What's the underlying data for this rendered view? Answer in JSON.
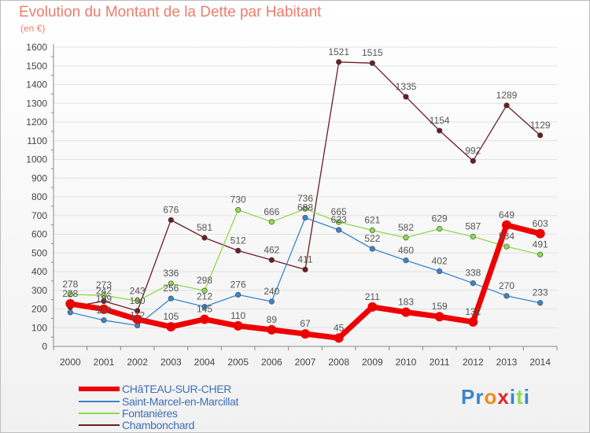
{
  "page": {
    "title": "Evolution du Montant de la Dette par Habitant",
    "subtitle": "(en €)",
    "logo": "Proxiti"
  },
  "chart_data": {
    "type": "line",
    "title": "Evolution du Montant de la Dette par Habitant",
    "subtitle": "(en €)",
    "xlabel": "",
    "ylabel": "",
    "x": [
      2000,
      2001,
      2002,
      2003,
      2004,
      2005,
      2006,
      2007,
      2008,
      2009,
      2010,
      2011,
      2012,
      2013,
      2014
    ],
    "ylim": [
      0,
      1600
    ],
    "yticks": [
      0,
      100,
      200,
      300,
      400,
      500,
      600,
      700,
      800,
      900,
      1000,
      1100,
      1200,
      1300,
      1400,
      1500,
      1600
    ],
    "grid": "horizontal",
    "legend": "bottom-left",
    "series": [
      {
        "name": "Chambonchard",
        "color": "#6b1d24",
        "values": [
          210,
          242,
          190,
          676,
          581,
          512,
          462,
          411,
          1521,
          1515,
          1335,
          1154,
          992,
          1289,
          1129
        ]
      },
      {
        "name": "Fontanières",
        "color": "#8fd94f",
        "values": [
          278,
          273,
          243,
          336,
          298,
          730,
          666,
          736,
          665,
          621,
          582,
          629,
          587,
          534,
          491
        ]
      },
      {
        "name": "Saint-Marcel-en-Marcillat",
        "color": "#3a86c8",
        "values": [
          182,
          140,
          112,
          256,
          212,
          276,
          240,
          688,
          623,
          522,
          460,
          402,
          338,
          270,
          233
        ]
      },
      {
        "name": "CHâTEAU-SUR-CHER",
        "color": "#ee0000",
        "values": [
          228,
          199,
          145,
          105,
          145,
          110,
          89,
          67,
          45,
          211,
          183,
          159,
          131,
          649,
          603
        ]
      }
    ],
    "data_labels": {
      "Chambonchard": [
        "",
        "242",
        "190",
        "676",
        "581",
        "512",
        "462",
        "411",
        "1521",
        "1515",
        "1335",
        "1154",
        "992",
        "1289",
        "1129"
      ],
      "Fontanières": [
        "278",
        "273",
        "243",
        "336",
        "298",
        "730",
        "666",
        "736",
        "665",
        "621",
        "582",
        "629",
        "587",
        "534",
        "491"
      ],
      "Saint-Marcel-en-Marcillat": [
        "",
        "140",
        "112",
        "256",
        "212",
        "276",
        "240",
        "688",
        "623",
        "522",
        "460",
        "402",
        "338",
        "270",
        "233"
      ],
      "CHâTEAU-SUR-CHER": [
        "228",
        "199",
        "",
        "105",
        "145",
        "110",
        "89",
        "67",
        "45",
        "211",
        "183",
        "159",
        "131",
        "649",
        "603"
      ]
    }
  },
  "legend": [
    {
      "label": "CHâTEAU-SUR-CHER",
      "color": "#ee0000"
    },
    {
      "label": "Saint-Marcel-en-Marcillat",
      "color": "#3a86c8"
    },
    {
      "label": "Fontanières",
      "color": "#8fd94f"
    },
    {
      "label": "Chambonchard",
      "color": "#6b1d24"
    }
  ]
}
